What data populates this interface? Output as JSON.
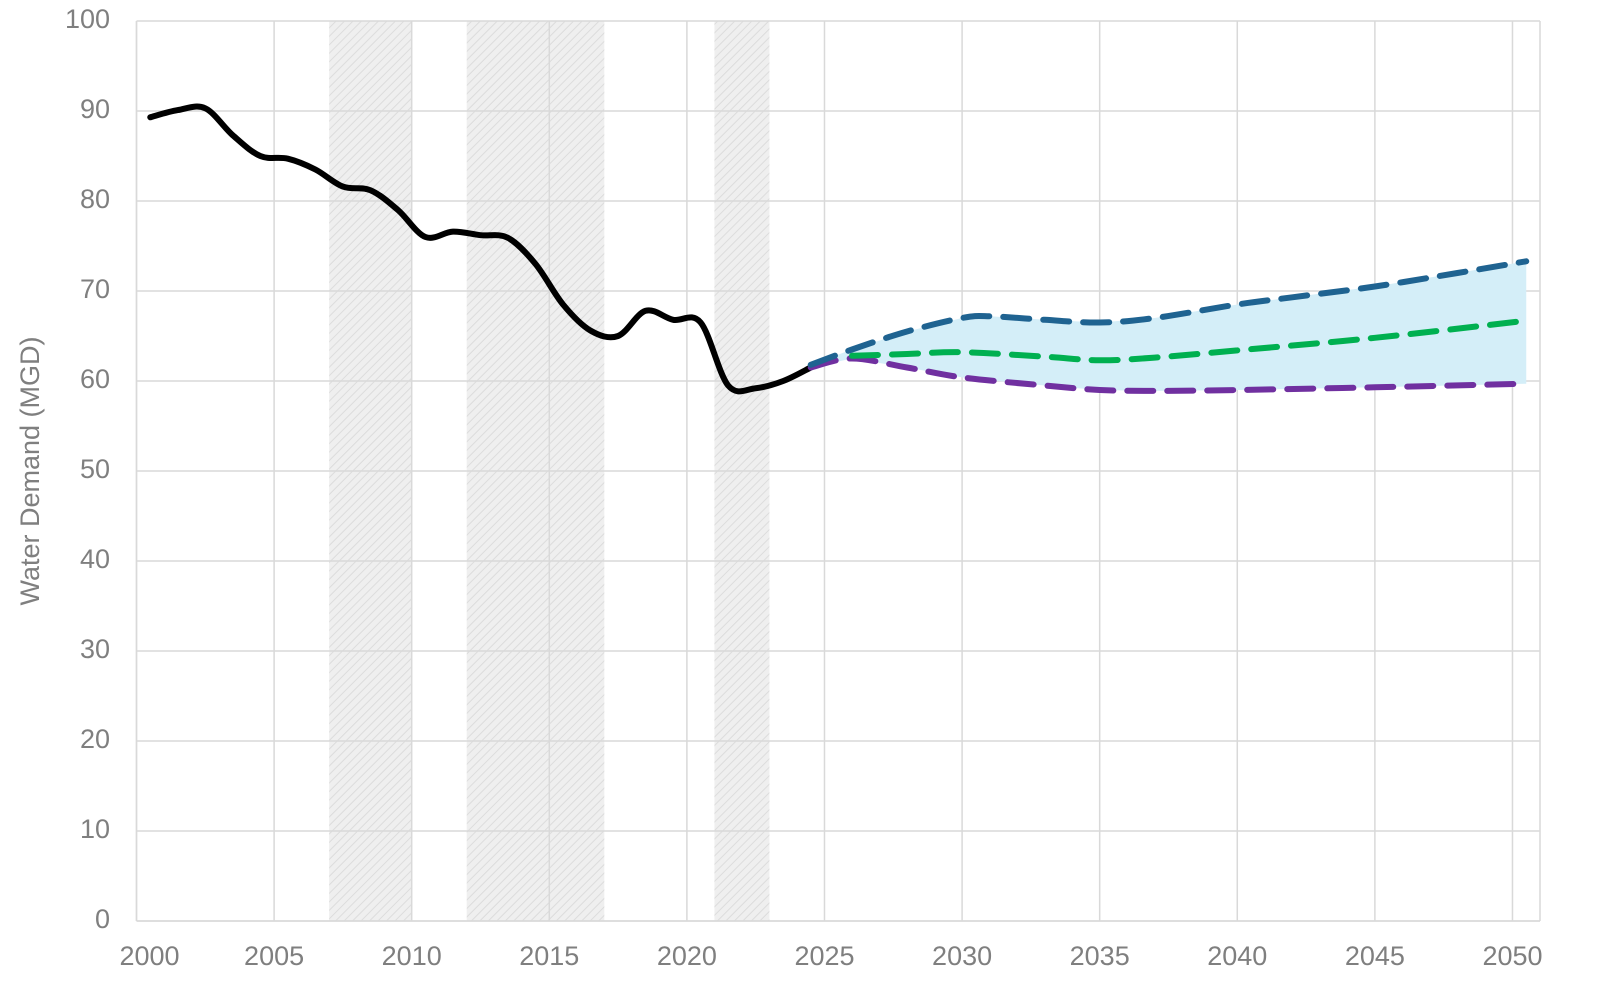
{
  "chart_data": {
    "type": "line",
    "y_label": "Water Demand (MGD)",
    "xlim": [
      2000,
      2051
    ],
    "xticks": [
      2000,
      2005,
      2010,
      2015,
      2020,
      2025,
      2030,
      2035,
      2040,
      2045,
      2050
    ],
    "ylim": [
      0,
      100
    ],
    "yticks": [
      0,
      10,
      20,
      30,
      40,
      50,
      60,
      70,
      80,
      90,
      100
    ],
    "grid": true,
    "shaded_periods": [
      [
        2007,
        2010
      ],
      [
        2012,
        2017
      ],
      [
        2021,
        2023
      ]
    ],
    "shade_color": "#ebebeb",
    "band": {
      "upper_series": 1,
      "lower_series": 3,
      "color": "#d4eef8"
    },
    "series": [
      {
        "color": "#000000",
        "dashed": false,
        "x": [
          2000.5,
          2001.5,
          2002.5,
          2003.5,
          2004.5,
          2005.5,
          2006.5,
          2007.5,
          2008.5,
          2009.5,
          2010.5,
          2011.5,
          2012.5,
          2013.5,
          2014.5,
          2015.5,
          2016.5,
          2017.5,
          2018.5,
          2019.5,
          2020.5,
          2021.5,
          2022.5,
          2023.5,
          2024.5
        ],
        "values": [
          89.3,
          90.1,
          90.3,
          87.3,
          85,
          84.7,
          83.5,
          81.6,
          81.2,
          79,
          76,
          76.6,
          76.2,
          75.9,
          73,
          68.5,
          65.6,
          65,
          67.8,
          66.8,
          66.5,
          59.5,
          59.2,
          60,
          61.5
        ]
      },
      {
        "color": "#1f6391",
        "dashed": true,
        "x": [
          2024.5,
          2026,
          2028,
          2030,
          2031,
          2033,
          2035,
          2037,
          2040,
          2042,
          2045,
          2048,
          2050.5
        ],
        "values": [
          61.8,
          63.5,
          65.5,
          67,
          67.2,
          66.8,
          66.5,
          67,
          68.5,
          69.3,
          70.5,
          72,
          73.3
        ]
      },
      {
        "color": "#00b050",
        "dashed": true,
        "x": [
          2026,
          2028,
          2030,
          2033,
          2035,
          2037,
          2040,
          2045,
          2050.5
        ],
        "values": [
          62.8,
          63,
          63.2,
          62.7,
          62.3,
          62.6,
          63.4,
          64.8,
          66.7
        ]
      },
      {
        "color": "#7030a0",
        "dashed": true,
        "x": [
          2024.5,
          2026,
          2028,
          2030,
          2033,
          2035,
          2037,
          2040,
          2045,
          2050.5
        ],
        "values": [
          61.5,
          62.5,
          61.5,
          60.4,
          59.5,
          59,
          58.9,
          59,
          59.3,
          59.7
        ]
      }
    ]
  }
}
